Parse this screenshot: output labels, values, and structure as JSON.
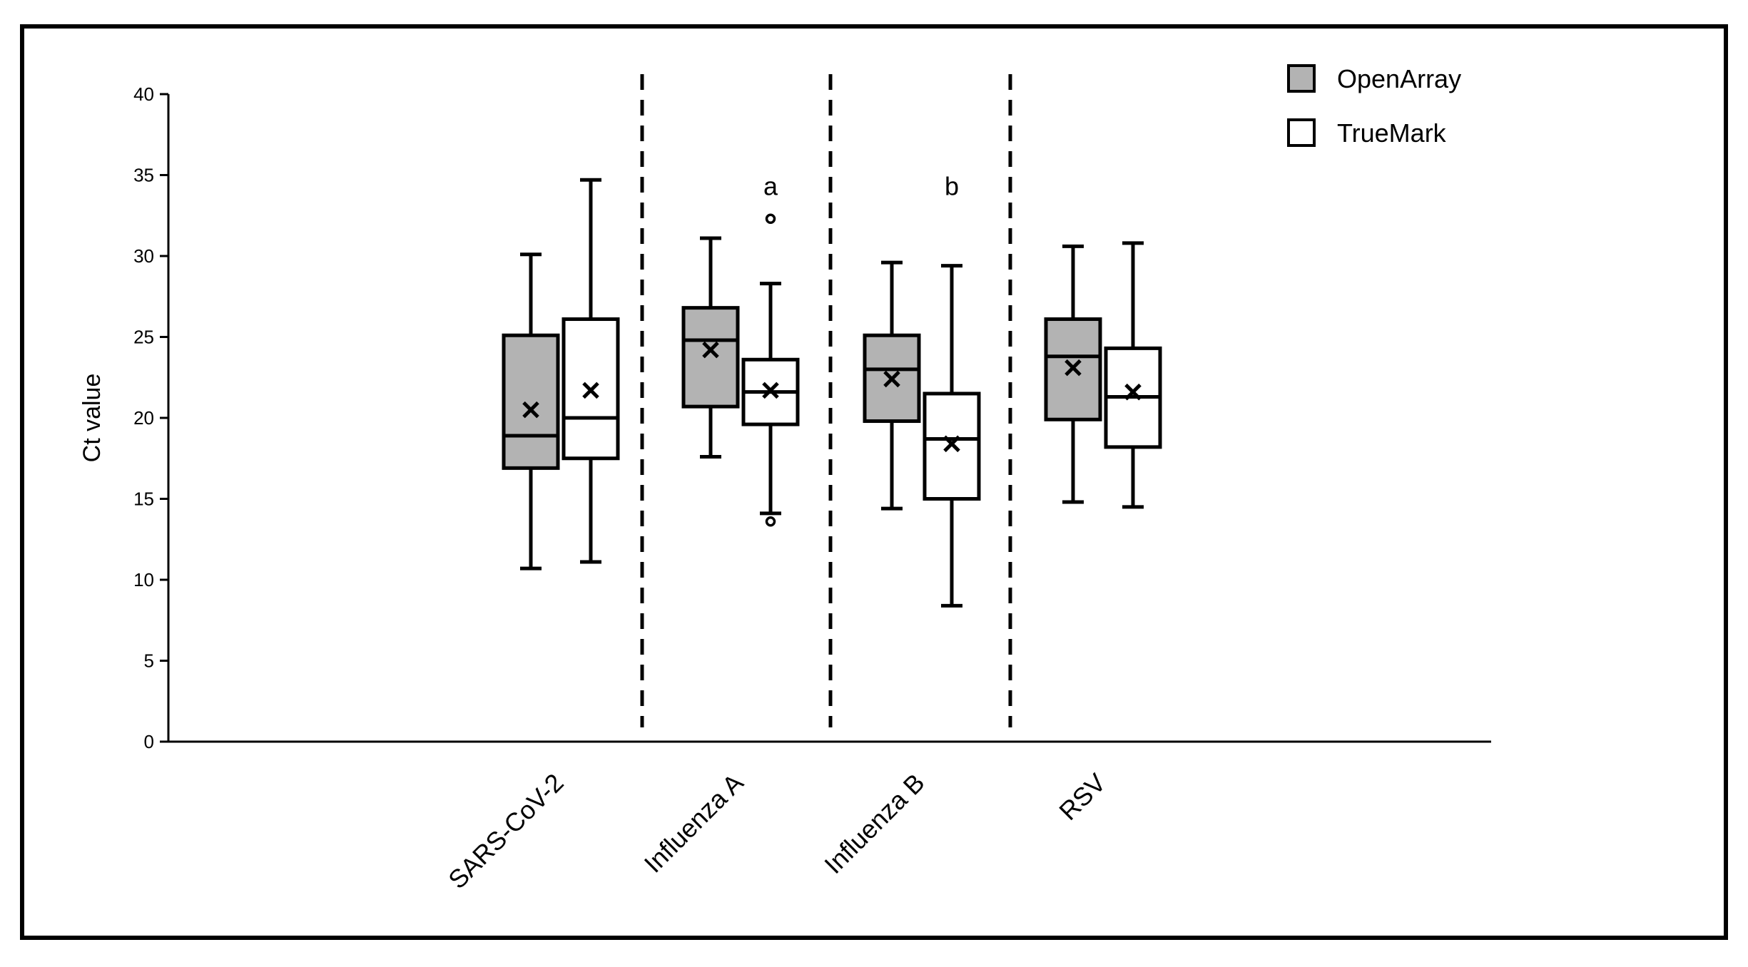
{
  "chart_data": {
    "type": "box",
    "ylabel": "Ct value",
    "xlabel": "",
    "ylim": [
      0,
      40
    ],
    "ytick_step": 5,
    "yticks": [
      "0",
      "5",
      "10",
      "15",
      "20",
      "25",
      "30",
      "35",
      "40"
    ],
    "categories": [
      "SARS-CoV-2",
      "Influenza A",
      "Influenza B",
      "RSV"
    ],
    "separators_between_categories": true,
    "legend": {
      "position": "top-right",
      "entries": [
        {
          "name": "OpenArray",
          "color": "#b3b3b3"
        },
        {
          "name": "TrueMark",
          "color": "#ffffff"
        }
      ]
    },
    "series": [
      {
        "name": "OpenArray",
        "color": "#b3b3b3",
        "boxes": [
          {
            "min": 10.7,
            "q1": 16.9,
            "median": 18.9,
            "q3": 25.1,
            "max": 30.1,
            "mean": 20.5,
            "outliers": []
          },
          {
            "min": 17.6,
            "q1": 20.7,
            "median": 24.8,
            "q3": 26.8,
            "max": 31.1,
            "mean": 24.2,
            "outliers": []
          },
          {
            "min": 14.4,
            "q1": 19.8,
            "median": 23.0,
            "q3": 25.1,
            "max": 29.6,
            "mean": 22.4,
            "outliers": []
          },
          {
            "min": 14.8,
            "q1": 19.9,
            "median": 23.8,
            "q3": 26.1,
            "max": 30.6,
            "mean": 23.1,
            "outliers": []
          }
        ]
      },
      {
        "name": "TrueMark",
        "color": "#ffffff",
        "boxes": [
          {
            "min": 11.1,
            "q1": 17.5,
            "median": 20.0,
            "q3": 26.1,
            "max": 34.7,
            "mean": 21.7,
            "outliers": []
          },
          {
            "min": 14.1,
            "q1": 19.6,
            "median": 21.6,
            "q3": 23.6,
            "max": 28.3,
            "mean": 21.7,
            "outliers": [
              32.3,
              13.6
            ]
          },
          {
            "min": 8.4,
            "q1": 15.0,
            "median": 18.7,
            "q3": 21.5,
            "max": 29.4,
            "mean": 18.4,
            "outliers": []
          },
          {
            "min": 14.5,
            "q1": 18.2,
            "median": 21.3,
            "q3": 24.3,
            "max": 30.8,
            "mean": 21.6,
            "outliers": []
          }
        ]
      }
    ],
    "annotations": [
      {
        "text": "a",
        "category": "Influenza A",
        "series": "TrueMark",
        "y": 34.3
      },
      {
        "text": "b",
        "category": "Influenza B",
        "series": "TrueMark",
        "y": 34.3
      }
    ]
  }
}
